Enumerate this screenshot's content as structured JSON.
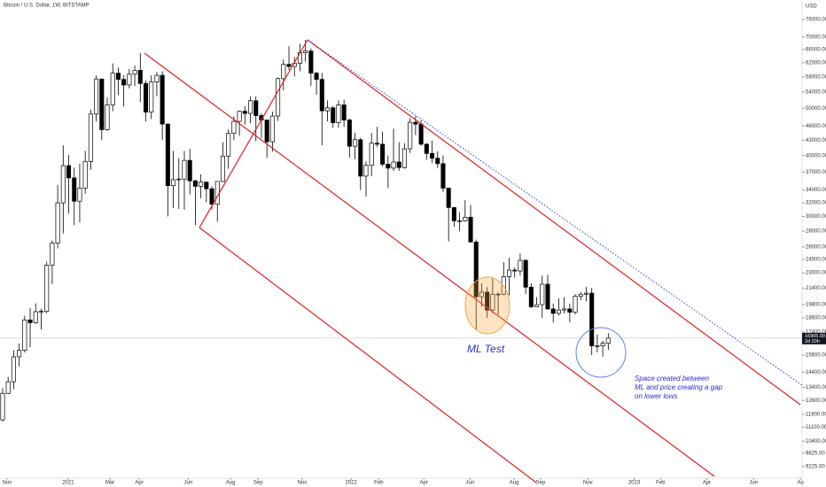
{
  "chart_data": {
    "type": "candlestick",
    "title": "Bitcoin / U.S. Dollar, 1W, BITSTAMP",
    "y_axis_unit": "USD",
    "log_scale": true,
    "grid": false,
    "up_color": "#ffffff",
    "down_color": "#000000",
    "ohlc": [
      [
        11500,
        13350,
        11400,
        13030
      ],
      [
        13030,
        14090,
        12980,
        13760
      ],
      [
        13760,
        15960,
        13290,
        15480
      ],
      [
        15480,
        16480,
        14800,
        15960
      ],
      [
        15960,
        18800,
        15790,
        18420
      ],
      [
        18420,
        19480,
        16200,
        18180
      ],
      [
        18180,
        19920,
        18100,
        19150
      ],
      [
        19150,
        19420,
        17600,
        19180
      ],
      [
        19180,
        24250,
        19000,
        23850
      ],
      [
        23850,
        26800,
        21800,
        26470
      ],
      [
        26470,
        34800,
        25800,
        32000
      ],
      [
        32000,
        41950,
        27700,
        38150
      ],
      [
        38150,
        40100,
        30400,
        36000
      ],
      [
        36000,
        37800,
        28800,
        32250
      ],
      [
        32250,
        38500,
        29200,
        34300
      ],
      [
        34300,
        40900,
        33400,
        38900
      ],
      [
        38900,
        49700,
        37400,
        48650
      ],
      [
        48650,
        58350,
        47000,
        57400
      ],
      [
        57400,
        57500,
        43000,
        45200
      ],
      [
        45200,
        52600,
        44950,
        50800
      ],
      [
        50800,
        61800,
        49300,
        59000
      ],
      [
        59000,
        60600,
        53200,
        57300
      ],
      [
        57300,
        58400,
        50400,
        55800
      ],
      [
        55800,
        60200,
        54900,
        58700
      ],
      [
        58700,
        61200,
        55500,
        59800
      ],
      [
        59800,
        64900,
        51500,
        56200
      ],
      [
        56200,
        57000,
        47000,
        49100
      ],
      [
        49100,
        58400,
        47500,
        56600
      ],
      [
        56600,
        59300,
        52900,
        58400
      ],
      [
        58400,
        59500,
        43000,
        46400
      ],
      [
        46400,
        46600,
        30000,
        34700
      ],
      [
        34700,
        40900,
        31200,
        35700
      ],
      [
        35700,
        39500,
        31100,
        35800
      ],
      [
        35800,
        40900,
        31000,
        39100
      ],
      [
        39100,
        41300,
        33300,
        35500
      ],
      [
        35500,
        35700,
        28800,
        34600
      ],
      [
        34600,
        36600,
        32700,
        35300
      ],
      [
        35300,
        35100,
        32100,
        34200
      ],
      [
        34200,
        34600,
        31000,
        31800
      ],
      [
        31800,
        35400,
        29300,
        35400
      ],
      [
        35400,
        42600,
        35300,
        39900
      ],
      [
        39900,
        45300,
        37600,
        44400
      ],
      [
        44400,
        48100,
        43000,
        47000
      ],
      [
        47000,
        49400,
        43900,
        49300
      ],
      [
        49300,
        50500,
        46300,
        48800
      ],
      [
        48800,
        52900,
        46600,
        51800
      ],
      [
        51800,
        52900,
        42800,
        48300
      ],
      [
        48300,
        48800,
        43400,
        47300
      ],
      [
        47300,
        47300,
        39600,
        42700
      ],
      [
        42700,
        49200,
        40800,
        48200
      ],
      [
        48200,
        57800,
        47100,
        57500
      ],
      [
        57500,
        62900,
        54400,
        61500
      ],
      [
        61500,
        67000,
        59900,
        60900
      ],
      [
        60900,
        63700,
        58100,
        61800
      ],
      [
        61800,
        67800,
        59500,
        65000
      ],
      [
        65000,
        69000,
        62300,
        65500
      ],
      [
        65500,
        66300,
        55600,
        59000
      ],
      [
        59000,
        59400,
        53300,
        57300
      ],
      [
        57300,
        59100,
        42000,
        49400
      ],
      [
        49400,
        51900,
        47000,
        50100
      ],
      [
        50100,
        50500,
        45600,
        46700
      ],
      [
        46700,
        51900,
        45600,
        50800
      ],
      [
        50800,
        52100,
        45800,
        47300
      ],
      [
        47300,
        47600,
        39650,
        41800
      ],
      [
        41800,
        44500,
        39300,
        43100
      ],
      [
        43100,
        43500,
        34000,
        36300
      ],
      [
        36300,
        38900,
        32950,
        38200
      ],
      [
        38200,
        44500,
        36300,
        42400
      ],
      [
        42400,
        45800,
        41700,
        42200
      ],
      [
        42200,
        44800,
        38000,
        38400
      ],
      [
        38400,
        40000,
        34300,
        37700
      ],
      [
        37700,
        45400,
        37200,
        38800
      ],
      [
        38800,
        42600,
        37200,
        37800
      ],
      [
        37800,
        42400,
        37600,
        41300
      ],
      [
        41300,
        47700,
        40500,
        46800
      ],
      [
        46800,
        48200,
        44100,
        46400
      ],
      [
        46400,
        47200,
        41900,
        42200
      ],
      [
        42200,
        42400,
        39200,
        40400
      ],
      [
        40400,
        42900,
        38600,
        39500
      ],
      [
        39500,
        40800,
        37700,
        38500
      ],
      [
        38500,
        40000,
        33700,
        34300
      ],
      [
        34300,
        34300,
        26700,
        31300
      ],
      [
        31300,
        31300,
        28600,
        29400
      ],
      [
        29400,
        30600,
        28000,
        29400
      ],
      [
        29400,
        32400,
        29300,
        29900
      ],
      [
        29900,
        31700,
        26600,
        26600
      ],
      [
        26600,
        26900,
        17600,
        20550
      ],
      [
        20550,
        21900,
        19600,
        21000
      ],
      [
        21000,
        21500,
        18600,
        19300
      ],
      [
        19300,
        22500,
        19000,
        20800
      ],
      [
        20800,
        21000,
        18900,
        20800
      ],
      [
        20800,
        24200,
        20700,
        22600
      ],
      [
        22600,
        24700,
        20700,
        23300
      ],
      [
        23300,
        23600,
        22500,
        23200
      ],
      [
        23200,
        25200,
        22700,
        24400
      ],
      [
        24400,
        24500,
        20800,
        21500
      ],
      [
        21500,
        21900,
        19500,
        19600
      ],
      [
        19600,
        20500,
        19600,
        19800
      ],
      [
        19800,
        22700,
        18600,
        21800
      ],
      [
        21800,
        22800,
        19300,
        19400
      ],
      [
        19400,
        19900,
        18200,
        19000
      ],
      [
        19000,
        20400,
        18800,
        19300
      ],
      [
        19300,
        20500,
        19000,
        19400
      ],
      [
        19400,
        19900,
        18200,
        19100
      ],
      [
        19100,
        20800,
        18900,
        20600
      ],
      [
        20600,
        21000,
        20200,
        20800
      ],
      [
        20800,
        21500,
        20100,
        20900
      ],
      [
        20900,
        21400,
        15600,
        16300
      ],
      [
        16300,
        17200,
        15800,
        16300
      ],
      [
        16300,
        16700,
        15500,
        16500
      ],
      [
        16500,
        17300,
        16000,
        16905
      ]
    ],
    "last_price": {
      "value": 16905,
      "label": "16905.00"
    },
    "countdown": "2d 20h",
    "ylim": [
      8733,
      83320
    ],
    "yticks": [
      {
        "value": 76000,
        "label": "76000.00"
      },
      {
        "value": 70000,
        "label": "70000.00"
      },
      {
        "value": 66000,
        "label": "66000.00"
      },
      {
        "value": 62000,
        "label": "62000.00"
      },
      {
        "value": 58000,
        "label": "58000.00"
      },
      {
        "value": 54000,
        "label": "54000.00"
      },
      {
        "value": 50000,
        "label": "50000.00"
      },
      {
        "value": 46000,
        "label": "46000.00"
      },
      {
        "value": 43000,
        "label": "43000.00"
      },
      {
        "value": 40000,
        "label": "40000.00"
      },
      {
        "value": 37000,
        "label": "37000.00"
      },
      {
        "value": 34000,
        "label": "34000.00"
      },
      {
        "value": 32000,
        "label": "32000.00"
      },
      {
        "value": 30000,
        "label": "30000.00"
      },
      {
        "value": 28000,
        "label": "28000.00"
      },
      {
        "value": 26000,
        "label": "26000.00"
      },
      {
        "value": 24500,
        "label": "24500.00"
      },
      {
        "value": 23000,
        "label": "23000.00"
      },
      {
        "value": 21400,
        "label": "21400.00"
      },
      {
        "value": 19800,
        "label": "19800.00"
      },
      {
        "value": 18600,
        "label": "18600.00"
      },
      {
        "value": 17400,
        "label": "17400.00"
      },
      {
        "value": 15600,
        "label": "15600.00"
      },
      {
        "value": 14400,
        "label": "14400.00"
      },
      {
        "value": 13400,
        "label": "13400.00"
      },
      {
        "value": 12600,
        "label": "12600.00"
      },
      {
        "value": 11800,
        "label": "11800.00"
      },
      {
        "value": 11100,
        "label": "11100.00"
      },
      {
        "value": 10400,
        "label": "10400.00"
      },
      {
        "value": 9825,
        "label": "9825.00"
      },
      {
        "value": 9225,
        "label": "9225.00"
      }
    ],
    "xlim": [
      -0.48,
      145.2
    ],
    "xticks": [
      {
        "value": 0.8,
        "label": "Nov"
      },
      {
        "value": 11.9,
        "label": "2021"
      },
      {
        "value": 19.5,
        "label": "Mar"
      },
      {
        "value": 24.8,
        "label": "Apr"
      },
      {
        "value": 33.7,
        "label": "Jun"
      },
      {
        "value": 41.4,
        "label": "Aug"
      },
      {
        "value": 46.4,
        "label": "Sep"
      },
      {
        "value": 54.4,
        "label": "Nov"
      },
      {
        "value": 63.3,
        "label": "2022"
      },
      {
        "value": 68.3,
        "label": "Feb"
      },
      {
        "value": 76.5,
        "label": "Apr"
      },
      {
        "value": 84.9,
        "label": "Jun"
      },
      {
        "value": 92.9,
        "label": "Aug"
      },
      {
        "value": 97.7,
        "label": "Sep"
      },
      {
        "value": 106.3,
        "label": "Nov"
      },
      {
        "value": 114.7,
        "label": "2023"
      },
      {
        "value": 119.5,
        "label": "Feb"
      },
      {
        "value": 127.9,
        "label": "Apr"
      },
      {
        "value": 136.4,
        "label": "Jun"
      },
      {
        "value": 144.9,
        "label": "Au"
      }
    ],
    "annotations": [
      "ML Test",
      "Space created between",
      "ML and price creating a gap",
      "on lower lows"
    ]
  }
}
